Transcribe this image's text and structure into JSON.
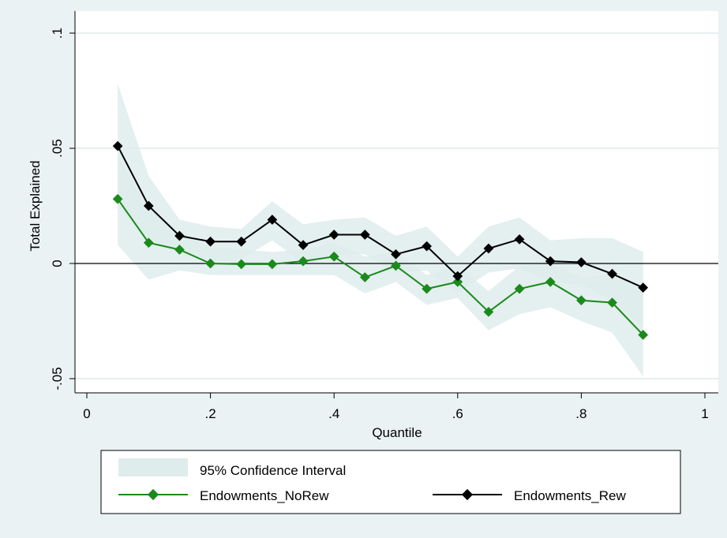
{
  "chart_data": {
    "type": "line",
    "xlabel": "Quantile",
    "ylabel": "Total Explained",
    "xlim": [
      0,
      1
    ],
    "ylim": [
      -0.05,
      0.1
    ],
    "x_ticks": [
      {
        "value": 0,
        "label": "0"
      },
      {
        "value": 0.2,
        "label": ".2"
      },
      {
        "value": 0.4,
        "label": ".4"
      },
      {
        "value": 0.6,
        "label": ".6"
      },
      {
        "value": 0.8,
        "label": ".8"
      },
      {
        "value": 1,
        "label": "1"
      }
    ],
    "y_ticks": [
      {
        "value": -0.05,
        "label": "-.05"
      },
      {
        "value": 0,
        "label": "0"
      },
      {
        "value": 0.05,
        "label": ".05"
      },
      {
        "value": 0.1,
        "label": ".1"
      }
    ],
    "grid": true,
    "reference_line": 0,
    "x": [
      0.05,
      0.1,
      0.15,
      0.2,
      0.25,
      0.3,
      0.35,
      0.4,
      0.45,
      0.5,
      0.55,
      0.6,
      0.65,
      0.7,
      0.75,
      0.8,
      0.85,
      0.9
    ],
    "series": [
      {
        "name": "Endowments_NoRew",
        "color": "#1a8a1a",
        "values": [
          0.028,
          0.009,
          0.006,
          0.0,
          -0.0003,
          -0.0003,
          0.001,
          0.003,
          -0.006,
          -0.001,
          -0.011,
          -0.008,
          -0.021,
          -0.011,
          -0.008,
          -0.016,
          -0.017,
          -0.031
        ],
        "ci_lower": [
          0.008,
          -0.007,
          -0.003,
          -0.005,
          -0.005,
          -0.005,
          -0.005,
          -0.005,
          -0.013,
          -0.008,
          -0.018,
          -0.015,
          -0.029,
          -0.022,
          -0.019,
          -0.025,
          -0.03,
          -0.049
        ],
        "ci_upper": [
          0.047,
          0.024,
          0.014,
          0.007,
          0.006,
          0.005,
          0.006,
          0.009,
          0.003,
          0.005,
          -0.005,
          -0.001,
          -0.012,
          -0.001,
          0.0,
          -0.006,
          -0.005,
          -0.012
        ]
      },
      {
        "name": "Endowments_Rew",
        "color": "#000000",
        "values": [
          0.051,
          0.025,
          0.012,
          0.0095,
          0.0095,
          0.019,
          0.008,
          0.0125,
          0.0125,
          0.004,
          0.0075,
          -0.0055,
          0.0065,
          0.0105,
          0.001,
          0.0005,
          -0.0045,
          -0.0105
        ],
        "ci_lower": [
          0.025,
          0.011,
          0.004,
          0.001,
          0.002,
          0.01,
          0.0,
          0.004,
          0.004,
          -0.004,
          -0.003,
          -0.013,
          -0.004,
          -0.002,
          -0.008,
          -0.009,
          -0.016,
          -0.028
        ],
        "ci_upper": [
          0.078,
          0.038,
          0.019,
          0.016,
          0.015,
          0.027,
          0.017,
          0.019,
          0.02,
          0.012,
          0.016,
          0.003,
          0.016,
          0.02,
          0.01,
          0.011,
          0.011,
          0.005
        ]
      }
    ],
    "ci_color": "#dfecec",
    "legend": {
      "placement": "bottom",
      "ci_label": "95% Confidence Interval",
      "items": [
        "Endowments_NoRew",
        "Endowments_Rew"
      ]
    }
  }
}
